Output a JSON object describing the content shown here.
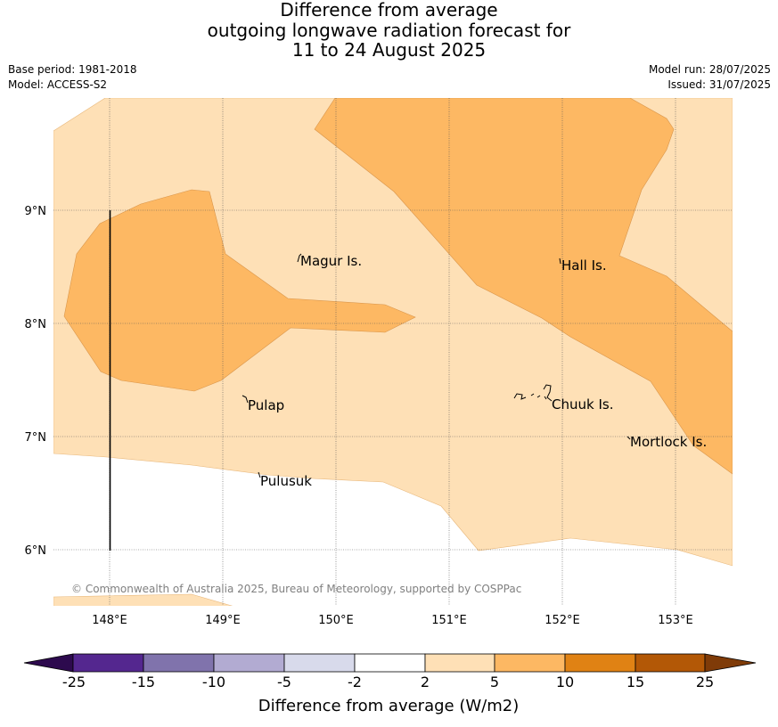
{
  "title": {
    "line1": "Difference from average",
    "line2": "outgoing longwave radiation forecast for",
    "line3": "11 to 24 August 2025"
  },
  "meta": {
    "base_period": "Base period: 1981-2018",
    "model": "Model: ACCESS-S2",
    "model_run": "Model run: 28/07/2025",
    "issued": "Issued: 31/07/2025"
  },
  "map": {
    "copyright": "© Commonwealth of Australia 2025, Bureau of Meteorology, supported by COSPPac",
    "lat_labels": [
      "9°N",
      "8°N",
      "7°N",
      "6°N"
    ],
    "lon_labels": [
      "148°E",
      "149°E",
      "150°E",
      "151°E",
      "152°E",
      "153°E"
    ],
    "places": [
      "Magur Is.",
      "Hall Is.",
      "Pulap",
      "Chuuk Is.",
      "Mortlock Is.",
      "Pulusuk"
    ]
  },
  "colorbar": {
    "ticks": [
      "-25",
      "-15",
      "-10",
      "-5",
      "-2",
      "2",
      "5",
      "10",
      "15",
      "25"
    ],
    "colors": [
      "#2d0a4e",
      "#54278f",
      "#8073ac",
      "#b2abd2",
      "#d8daeb",
      "#ffffff",
      "#fee0b6",
      "#fdb863",
      "#e08214",
      "#b35806",
      "#7f3b08"
    ],
    "label": "Difference from average (W/m2)"
  }
}
